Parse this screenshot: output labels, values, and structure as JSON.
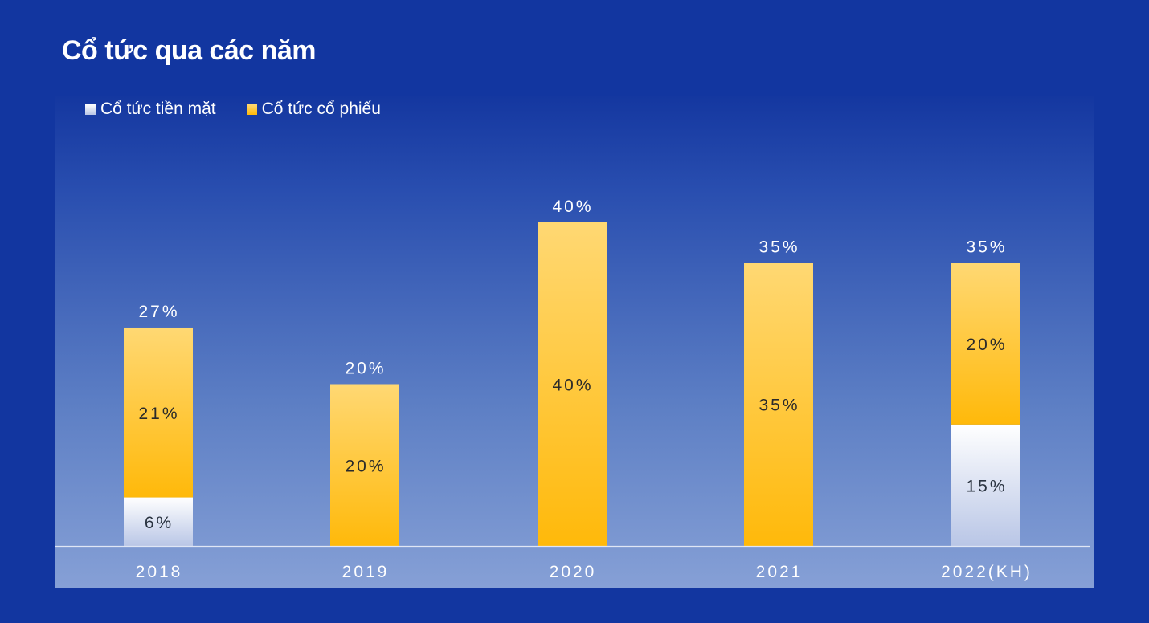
{
  "title": "Cổ tức qua các năm",
  "legend": {
    "cash_label": "Cổ tức tiền mặt",
    "stock_label": "Cổ tức cổ phiếu"
  },
  "colors": {
    "background": "#1236a0",
    "cash_top": "#ffffff",
    "cash_bottom": "#b9c6e6",
    "stock_top": "#ffd873",
    "stock_bottom": "#ffb90a"
  },
  "chart_data": {
    "type": "bar",
    "stacked": true,
    "categories": [
      "2018",
      "2019",
      "2020",
      "2021",
      "2022(KH)"
    ],
    "series": [
      {
        "name": "Cổ tức tiền mặt",
        "values": [
          6,
          0,
          0,
          0,
          15
        ],
        "labels": [
          "6%",
          "",
          "",
          "",
          "15%"
        ]
      },
      {
        "name": "Cổ tức cổ phiếu",
        "values": [
          21,
          20,
          40,
          35,
          20
        ],
        "labels": [
          "21%",
          "20%",
          "40%",
          "35%",
          "20%"
        ]
      }
    ],
    "totals": [
      27,
      20,
      40,
      35,
      35
    ],
    "total_labels": [
      "27%",
      "20%",
      "40%",
      "35%",
      "35%"
    ],
    "ylim": [
      0,
      40
    ],
    "legend_position": "top-left",
    "grid": false
  }
}
